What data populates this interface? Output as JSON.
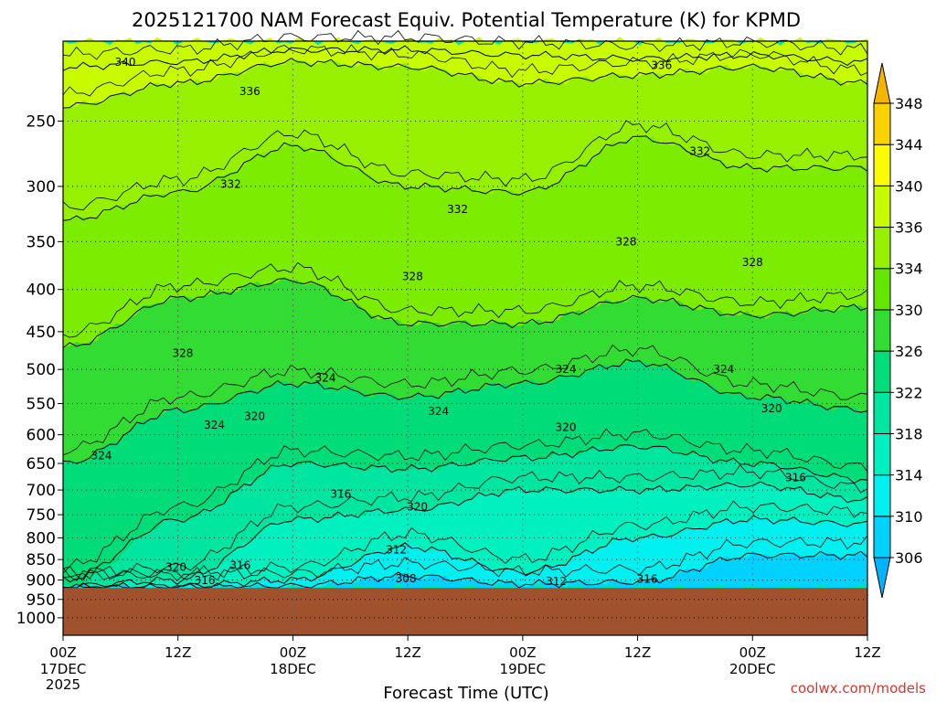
{
  "chart_data": {
    "type": "heatmap",
    "title": "2025121700 NAM Forecast Equiv. Potential Temperature (K) for KPMD",
    "xlabel": "Forecast Time (UTC)",
    "ylabel": "",
    "y_scale": "log-pressure",
    "y_axis": {
      "ticks": [
        250,
        300,
        350,
        400,
        450,
        500,
        550,
        600,
        650,
        700,
        750,
        800,
        850,
        900,
        950,
        1000
      ],
      "range_hPa": [
        200,
        1050
      ],
      "reversed": true
    },
    "x_axis": {
      "range_hours": [
        0,
        84
      ],
      "ticks": [
        {
          "hour": 0,
          "label": "00Z",
          "sub1": "17DEC",
          "sub2": "2025"
        },
        {
          "hour": 12,
          "label": "12Z",
          "sub1": "",
          "sub2": ""
        },
        {
          "hour": 24,
          "label": "00Z",
          "sub1": "18DEC",
          "sub2": ""
        },
        {
          "hour": 36,
          "label": "12Z",
          "sub1": "",
          "sub2": ""
        },
        {
          "hour": 48,
          "label": "00Z",
          "sub1": "19DEC",
          "sub2": ""
        },
        {
          "hour": 60,
          "label": "12Z",
          "sub1": "",
          "sub2": ""
        },
        {
          "hour": 72,
          "label": "00Z",
          "sub1": "20DEC",
          "sub2": ""
        },
        {
          "hour": 84,
          "label": "12Z",
          "sub1": "",
          "sub2": ""
        }
      ]
    },
    "grid": true,
    "surface_pressure_hPa": 920,
    "colorbar": {
      "placement": "right",
      "labels": [
        "306",
        "310",
        "314",
        "318",
        "322",
        "326",
        "330",
        "334",
        "336",
        "340",
        "344",
        "348"
      ],
      "bins": [
        {
          "min": 302,
          "max": 306,
          "color": "#00b4ff"
        },
        {
          "min": 306,
          "max": 310,
          "color": "#00d2ff"
        },
        {
          "min": 310,
          "max": 314,
          "color": "#00f0f0"
        },
        {
          "min": 314,
          "max": 318,
          "color": "#00f0c0"
        },
        {
          "min": 318,
          "max": 322,
          "color": "#00e6a0"
        },
        {
          "min": 322,
          "max": 326,
          "color": "#00dc78"
        },
        {
          "min": 326,
          "max": 330,
          "color": "#32dc32"
        },
        {
          "min": 330,
          "max": 334,
          "color": "#64e600"
        },
        {
          "min": 334,
          "max": 336,
          "color": "#96f000"
        },
        {
          "min": 336,
          "max": 340,
          "color": "#c8fa00"
        },
        {
          "min": 340,
          "max": 344,
          "color": "#fafa00"
        },
        {
          "min": 344,
          "max": 348,
          "color": "#fad200"
        },
        {
          "min": 348,
          "max": 352,
          "color": "#f5b400"
        }
      ]
    },
    "bands": [
      {
        "theta_min": 336,
        "theta_max": 344,
        "color": "#c8fa00",
        "top_pres": [
          200,
          200,
          200,
          200,
          200,
          200,
          200,
          200
        ],
        "bottom_pres": [
          240,
          225,
          212,
          215,
          225,
          220,
          215,
          225
        ]
      },
      {
        "theta_min": 330,
        "theta_max": 336,
        "color": "#96f000",
        "top_pres": [
          240,
          225,
          212,
          215,
          225,
          220,
          215,
          225
        ],
        "bottom_pres": [
          330,
          305,
          268,
          300,
          305,
          262,
          285,
          285
        ]
      },
      {
        "theta_min": 328,
        "theta_max": 332,
        "color": "#7cec00",
        "top_pres": [
          330,
          305,
          268,
          300,
          305,
          262,
          285,
          285
        ],
        "bottom_pres": [
          470,
          410,
          390,
          440,
          440,
          410,
          430,
          420
        ]
      },
      {
        "theta_min": 324,
        "theta_max": 328,
        "color": "#32dc32",
        "top_pres": [
          470,
          410,
          390,
          440,
          440,
          410,
          430,
          420
        ],
        "bottom_pres": [
          650,
          560,
          520,
          540,
          520,
          490,
          540,
          560
        ]
      },
      {
        "theta_min": 320,
        "theta_max": 324,
        "color": "#00dc78",
        "top_pres": [
          650,
          560,
          520,
          540,
          520,
          490,
          540,
          560
        ],
        "bottom_pres": [
          920,
          760,
          650,
          660,
          640,
          620,
          650,
          680
        ]
      },
      {
        "theta_min": 316,
        "theta_max": 320,
        "color": "#00e6a0",
        "top_pres": [
          920,
          760,
          650,
          660,
          640,
          620,
          650,
          680
        ],
        "bottom_pres": [
          920,
          900,
          760,
          740,
          700,
          700,
          690,
          720
        ]
      },
      {
        "theta_min": 312,
        "theta_max": 316,
        "color": "#00f0c0",
        "top_pres": [
          920,
          900,
          760,
          740,
          700,
          700,
          690,
          720
        ],
        "bottom_pres": [
          920,
          920,
          900,
          820,
          880,
          800,
          760,
          770
        ]
      },
      {
        "theta_min": 308,
        "theta_max": 312,
        "color": "#00f0f0",
        "top_pres": [
          920,
          920,
          900,
          820,
          880,
          800,
          760,
          770
        ],
        "bottom_pres": [
          920,
          920,
          920,
          890,
          910,
          905,
          840,
          840
        ]
      },
      {
        "theta_min": 304,
        "theta_max": 308,
        "color": "#00d2ff",
        "top_pres": [
          920,
          920,
          920,
          890,
          910,
          905,
          840,
          840
        ],
        "bottom_pres": [
          920,
          920,
          920,
          920,
          920,
          920,
          920,
          920
        ]
      }
    ],
    "contour_lines": [
      {
        "theta": 340,
        "pres": [
          215,
          212,
          205,
          205,
          208,
          210,
          208,
          212
        ]
      },
      {
        "theta": 336,
        "pres": [
          240,
          225,
          212,
          215,
          225,
          220,
          215,
          225
        ]
      },
      {
        "theta": 332,
        "pres": [
          330,
          305,
          268,
          300,
          305,
          262,
          285,
          285
        ]
      },
      {
        "theta": 328,
        "pres": [
          470,
          410,
          390,
          440,
          440,
          410,
          430,
          420
        ]
      },
      {
        "theta": 324,
        "pres": [
          650,
          560,
          520,
          540,
          520,
          490,
          540,
          560
        ]
      },
      {
        "theta": 320,
        "pres": [
          900,
          760,
          650,
          660,
          640,
          620,
          650,
          680
        ]
      },
      {
        "theta": 316,
        "pres": [
          915,
          900,
          760,
          740,
          700,
          700,
          690,
          720
        ]
      },
      {
        "theta": 312,
        "pres": [
          918,
          915,
          900,
          820,
          880,
          800,
          760,
          770
        ]
      },
      {
        "theta": 308,
        "pres": [
          920,
          918,
          915,
          890,
          910,
          905,
          840,
          840
        ]
      }
    ],
    "contour_labels": [
      {
        "text": "340",
        "hour": 6.5,
        "pres": 212
      },
      {
        "text": "336",
        "hour": 19.5,
        "pres": 230
      },
      {
        "text": "336",
        "hour": 62.5,
        "pres": 214
      },
      {
        "text": "332",
        "hour": 17.5,
        "pres": 298
      },
      {
        "text": "332",
        "hour": 41.2,
        "pres": 320
      },
      {
        "text": "332",
        "hour": 66.5,
        "pres": 272
      },
      {
        "text": "328",
        "hour": 12.5,
        "pres": 478
      },
      {
        "text": "328",
        "hour": 36.5,
        "pres": 386
      },
      {
        "text": "328",
        "hour": 58.8,
        "pres": 350
      },
      {
        "text": "328",
        "hour": 72,
        "pres": 371
      },
      {
        "text": "324",
        "hour": 4,
        "pres": 636
      },
      {
        "text": "324",
        "hour": 15.8,
        "pres": 584
      },
      {
        "text": "324",
        "hour": 27.4,
        "pres": 512
      },
      {
        "text": "324",
        "hour": 39.2,
        "pres": 562
      },
      {
        "text": "324",
        "hour": 52.5,
        "pres": 500
      },
      {
        "text": "324",
        "hour": 69,
        "pres": 500
      },
      {
        "text": "320",
        "hour": 20,
        "pres": 570
      },
      {
        "text": "320",
        "hour": 52.5,
        "pres": 588
      },
      {
        "text": "320",
        "hour": 37,
        "pres": 734
      },
      {
        "text": "320",
        "hour": 74,
        "pres": 558
      },
      {
        "text": "320",
        "hour": 11.8,
        "pres": 868
      },
      {
        "text": "316",
        "hour": 29,
        "pres": 708
      },
      {
        "text": "316",
        "hour": 76.5,
        "pres": 676
      },
      {
        "text": "316",
        "hour": 18.5,
        "pres": 864
      },
      {
        "text": "316",
        "hour": 14.8,
        "pres": 901
      },
      {
        "text": "316",
        "hour": 61,
        "pres": 897
      },
      {
        "text": "312",
        "hour": 34.8,
        "pres": 827
      },
      {
        "text": "312",
        "hour": 51.5,
        "pres": 903
      },
      {
        "text": "308",
        "hour": 35.8,
        "pres": 896
      }
    ]
  },
  "credit": "coolwx.com/models"
}
